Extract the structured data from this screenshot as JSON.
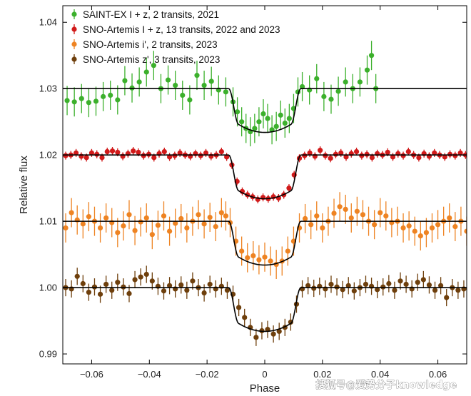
{
  "watermark": "搜狐号@爱势分子knowledge",
  "chart_data": {
    "type": "scatter",
    "xlabel": "Phase",
    "ylabel": "Relative flux",
    "xlim": [
      -0.07,
      0.07
    ],
    "ylim": [
      0.9885,
      1.0425
    ],
    "xticks": [
      -0.06,
      -0.04,
      -0.02,
      0,
      0.02,
      0.04,
      0.06
    ],
    "xtick_labels": [
      "−0.06",
      "−0.04",
      "−0.02",
      "0",
      "0.02",
      "0.04",
      "0.06"
    ],
    "yticks": [
      0.99,
      1.0,
      1.01,
      1.02,
      1.03,
      1.04
    ],
    "ytick_labels": [
      "0.99",
      "1.00",
      "1.01",
      "1.02",
      "1.03",
      "1.04"
    ],
    "grid": false,
    "legend_position": "top-left",
    "transit": {
      "ingress_start": -0.0125,
      "ingress_end": -0.009,
      "egress_start": 0.009,
      "egress_end": 0.0125
    },
    "series": [
      {
        "name": "SAINT-EX I + z, 2 transits, 2021",
        "color": "#3cb02c",
        "baseline": 1.03,
        "depth": 0.0066,
        "xrange": [
          -0.0685,
          0.0385
        ],
        "step": 0.0025,
        "err": 0.0022,
        "points": [
          [
            -0.0685,
            1.0282
          ],
          [
            -0.066,
            1.028
          ],
          [
            -0.0635,
            1.0285
          ],
          [
            -0.061,
            1.0279
          ],
          [
            -0.0585,
            1.0281
          ],
          [
            -0.056,
            1.0288
          ],
          [
            -0.0535,
            1.029
          ],
          [
            -0.051,
            1.0283
          ],
          [
            -0.0485,
            1.0312
          ],
          [
            -0.046,
            1.0301
          ],
          [
            -0.0435,
            1.031
          ],
          [
            -0.041,
            1.0325
          ],
          [
            -0.0385,
            1.0335
          ],
          [
            -0.036,
            1.03
          ],
          [
            -0.0335,
            1.0313
          ],
          [
            -0.031,
            1.0305
          ],
          [
            -0.0285,
            1.029
          ],
          [
            -0.026,
            1.0283
          ],
          [
            -0.0235,
            1.032
          ],
          [
            -0.021,
            1.0305
          ],
          [
            -0.0185,
            1.0311
          ],
          [
            -0.016,
            1.0298
          ],
          [
            -0.0135,
            1.0295
          ],
          [
            -0.011,
            1.028
          ],
          [
            -0.0095,
            1.0265
          ],
          [
            -0.008,
            1.025
          ],
          [
            -0.0065,
            1.024
          ],
          [
            -0.005,
            1.0235
          ],
          [
            -0.0035,
            1.024
          ],
          [
            -0.002,
            1.025
          ],
          [
            -0.0005,
            1.0262
          ],
          [
            0.001,
            1.0255
          ],
          [
            0.0025,
            1.0238
          ],
          [
            0.004,
            1.0243
          ],
          [
            0.0055,
            1.026
          ],
          [
            0.007,
            1.0248
          ],
          [
            0.0085,
            1.0255
          ],
          [
            0.01,
            1.027
          ],
          [
            0.0115,
            1.0295
          ],
          [
            0.013,
            1.0303
          ],
          [
            0.0155,
            1.0298
          ],
          [
            0.018,
            1.0315
          ],
          [
            0.0205,
            1.0288
          ],
          [
            0.023,
            1.0284
          ],
          [
            0.0255,
            1.0296
          ],
          [
            0.028,
            1.031
          ],
          [
            0.0305,
            1.03
          ],
          [
            0.033,
            1.031
          ],
          [
            0.0355,
            1.0328
          ],
          [
            0.037,
            1.035
          ],
          [
            0.0385,
            1.03
          ]
        ]
      },
      {
        "name": "SNO-Artemis I + z, 13 transits, 2022 and 2023",
        "color": "#d11a1a",
        "baseline": 1.02,
        "depth": 0.0066,
        "step": 0.0018,
        "err": 0.0006,
        "points": [
          [
            -0.069,
            1.0199
          ],
          [
            -0.0672,
            1.02
          ],
          [
            -0.0654,
            1.0203
          ],
          [
            -0.0636,
            1.0198
          ],
          [
            -0.0618,
            1.0196
          ],
          [
            -0.06,
            1.0203
          ],
          [
            -0.0582,
            1.0201
          ],
          [
            -0.0564,
            1.0196
          ],
          [
            -0.0546,
            1.0205
          ],
          [
            -0.0528,
            1.0206
          ],
          [
            -0.051,
            1.0204
          ],
          [
            -0.0492,
            1.0198
          ],
          [
            -0.0474,
            1.0202
          ],
          [
            -0.0456,
            1.0206
          ],
          [
            -0.0438,
            1.0204
          ],
          [
            -0.042,
            1.0199
          ],
          [
            -0.0402,
            1.0201
          ],
          [
            -0.0384,
            1.0196
          ],
          [
            -0.0366,
            1.0202
          ],
          [
            -0.0348,
            1.0205
          ],
          [
            -0.033,
            1.0197
          ],
          [
            -0.0312,
            1.0199
          ],
          [
            -0.0294,
            1.0203
          ],
          [
            -0.0276,
            1.02
          ],
          [
            -0.0258,
            1.0198
          ],
          [
            -0.024,
            1.0202
          ],
          [
            -0.0222,
            1.0199
          ],
          [
            -0.0204,
            1.0203
          ],
          [
            -0.0186,
            1.0198
          ],
          [
            -0.0168,
            1.02
          ],
          [
            -0.015,
            1.0205
          ],
          [
            -0.0132,
            1.0197
          ],
          [
            -0.0114,
            1.0185
          ],
          [
            -0.0096,
            1.016
          ],
          [
            -0.0078,
            1.0145
          ],
          [
            -0.006,
            1.014
          ],
          [
            -0.0042,
            1.0137
          ],
          [
            -0.0024,
            1.0133
          ],
          [
            -0.0006,
            1.0136
          ],
          [
            0.0012,
            1.0134
          ],
          [
            0.003,
            1.0137
          ],
          [
            0.0048,
            1.0135
          ],
          [
            0.0066,
            1.014
          ],
          [
            0.0084,
            1.015
          ],
          [
            0.0102,
            1.017
          ],
          [
            0.012,
            1.0195
          ],
          [
            0.0138,
            1.0199
          ],
          [
            0.0156,
            1.0203
          ],
          [
            0.0174,
            1.0198
          ],
          [
            0.0192,
            1.0207
          ],
          [
            0.021,
            1.0199
          ],
          [
            0.0228,
            1.0195
          ],
          [
            0.0246,
            1.0201
          ],
          [
            0.0264,
            1.0203
          ],
          [
            0.0282,
            1.0197
          ],
          [
            0.03,
            1.0202
          ],
          [
            0.0318,
            1.0205
          ],
          [
            0.0336,
            1.0199
          ],
          [
            0.0354,
            1.0201
          ],
          [
            0.0372,
            1.0196
          ],
          [
            0.039,
            1.0202
          ],
          [
            0.0408,
            1.02
          ],
          [
            0.0426,
            1.0204
          ],
          [
            0.0444,
            1.0197
          ],
          [
            0.0462,
            1.0202
          ],
          [
            0.048,
            1.0199
          ],
          [
            0.0498,
            1.0205
          ],
          [
            0.0516,
            1.02
          ],
          [
            0.0534,
            1.0196
          ],
          [
            0.0552,
            1.0202
          ],
          [
            0.057,
            1.0198
          ],
          [
            0.0588,
            1.0203
          ],
          [
            0.0606,
            1.02
          ],
          [
            0.0624,
            1.0197
          ],
          [
            0.0642,
            1.0201
          ],
          [
            0.066,
            1.0199
          ],
          [
            0.0678,
            1.0203
          ],
          [
            0.0696,
            1.02
          ]
        ]
      },
      {
        "name": "SNO-Artemis i', 2 transits, 2023",
        "color": "#ee8322",
        "baseline": 1.01,
        "depth": 0.0066,
        "step": 0.002,
        "err": 0.0022,
        "points": [
          [
            -0.069,
            1.009
          ],
          [
            -0.067,
            1.0113
          ],
          [
            -0.065,
            1.0102
          ],
          [
            -0.063,
            1.0096
          ],
          [
            -0.061,
            1.0107
          ],
          [
            -0.059,
            1.01
          ],
          [
            -0.057,
            1.009
          ],
          [
            -0.055,
            1.0105
          ],
          [
            -0.053,
            1.0098
          ],
          [
            -0.051,
            1.0083
          ],
          [
            -0.049,
            1.0093
          ],
          [
            -0.047,
            1.011
          ],
          [
            -0.045,
            1.0086
          ],
          [
            -0.043,
            1.0099
          ],
          [
            -0.041,
            1.0105
          ],
          [
            -0.039,
            1.008
          ],
          [
            -0.037,
            1.0094
          ],
          [
            -0.035,
            1.0108
          ],
          [
            -0.033,
            1.0085
          ],
          [
            -0.031,
            1.0097
          ],
          [
            -0.029,
            1.0104
          ],
          [
            -0.027,
            1.009
          ],
          [
            -0.025,
            1.01
          ],
          [
            -0.023,
            1.011
          ],
          [
            -0.021,
            1.0096
          ],
          [
            -0.019,
            1.0106
          ],
          [
            -0.017,
            1.0092
          ],
          [
            -0.015,
            1.0113
          ],
          [
            -0.0135,
            1.0108
          ],
          [
            -0.012,
            1.0098
          ],
          [
            -0.01,
            1.007
          ],
          [
            -0.008,
            1.0055
          ],
          [
            -0.006,
            1.0045
          ],
          [
            -0.004,
            1.0048
          ],
          [
            -0.002,
            1.0042
          ],
          [
            0.0,
            1.0046
          ],
          [
            0.002,
            1.004
          ],
          [
            0.004,
            1.0035
          ],
          [
            0.006,
            1.004
          ],
          [
            0.008,
            1.0055
          ],
          [
            0.01,
            1.007
          ],
          [
            0.012,
            1.009
          ],
          [
            0.014,
            1.0104
          ],
          [
            0.016,
            1.0095
          ],
          [
            0.018,
            1.0108
          ],
          [
            0.02,
            1.009
          ],
          [
            0.022,
            1.01
          ],
          [
            0.024,
            1.0112
          ],
          [
            0.026,
            1.0122
          ],
          [
            0.028,
            1.0118
          ],
          [
            0.03,
            1.0105
          ],
          [
            0.032,
            1.0115
          ],
          [
            0.034,
            1.011
          ],
          [
            0.036,
            1.01
          ],
          [
            0.038,
            1.0095
          ],
          [
            0.04,
            1.0113
          ],
          [
            0.042,
            1.0108
          ],
          [
            0.044,
            1.0098
          ],
          [
            0.046,
            1.01
          ],
          [
            0.048,
            1.009
          ],
          [
            0.05,
            1.0093
          ],
          [
            0.052,
            1.0085
          ],
          [
            0.054,
            1.0078
          ],
          [
            0.056,
            1.0083
          ],
          [
            0.058,
            1.009
          ],
          [
            0.06,
            1.0095
          ],
          [
            0.062,
            1.01
          ],
          [
            0.064,
            1.0105
          ],
          [
            0.066,
            1.0092
          ],
          [
            0.068,
            1.01
          ],
          [
            0.07,
            1.0085
          ]
        ]
      },
      {
        "name": "SNO-Artemis z', 3 transits, 2023",
        "color": "#6e3f0c",
        "baseline": 1.0,
        "depth": 0.0066,
        "step": 0.002,
        "err": 0.0013,
        "points": [
          [
            -0.069,
            1.0
          ],
          [
            -0.067,
            0.9998
          ],
          [
            -0.065,
            1.0017
          ],
          [
            -0.063,
            1.0006
          ],
          [
            -0.061,
            0.9993
          ],
          [
            -0.059,
            1.0001
          ],
          [
            -0.057,
            0.999
          ],
          [
            -0.055,
            1.0005
          ],
          [
            -0.053,
            0.9996
          ],
          [
            -0.051,
            1.0008
          ],
          [
            -0.049,
            1.0001
          ],
          [
            -0.047,
            0.9991
          ],
          [
            -0.045,
            1.0012
          ],
          [
            -0.043,
            1.0016
          ],
          [
            -0.041,
            1.002
          ],
          [
            -0.039,
            1.001
          ],
          [
            -0.037,
            1.0002
          ],
          [
            -0.035,
            0.9995
          ],
          [
            -0.033,
            1.0003
          ],
          [
            -0.031,
            0.9998
          ],
          [
            -0.029,
            1.0004
          ],
          [
            -0.027,
            0.9996
          ],
          [
            -0.025,
            1.001
          ],
          [
            -0.023,
            1.0
          ],
          [
            -0.021,
            0.9992
          ],
          [
            -0.019,
            1.0005
          ],
          [
            -0.017,
            0.9998
          ],
          [
            -0.015,
            1.0002
          ],
          [
            -0.013,
            0.9996
          ],
          [
            -0.011,
            0.999
          ],
          [
            -0.009,
            0.997
          ],
          [
            -0.007,
            0.9955
          ],
          [
            -0.005,
            0.994
          ],
          [
            -0.003,
            0.9925
          ],
          [
            -0.001,
            0.9935
          ],
          [
            0.001,
            0.9937
          ],
          [
            0.003,
            0.993
          ],
          [
            0.005,
            0.9934
          ],
          [
            0.007,
            0.994
          ],
          [
            0.009,
            0.9948
          ],
          [
            0.011,
            0.9975
          ],
          [
            0.013,
            0.9998
          ],
          [
            0.015,
            1.0003
          ],
          [
            0.017,
            0.9999
          ],
          [
            0.019,
            1.0002
          ],
          [
            0.021,
            0.9998
          ],
          [
            0.023,
            1.0005
          ],
          [
            0.025,
            1.0001
          ],
          [
            0.027,
            0.9997
          ],
          [
            0.029,
            1.0003
          ],
          [
            0.031,
            0.9995
          ],
          [
            0.033,
            1.0
          ],
          [
            0.035,
            1.0005
          ],
          [
            0.037,
            1.0002
          ],
          [
            0.039,
            0.9997
          ],
          [
            0.041,
            1.0001
          ],
          [
            0.043,
            1.0006
          ],
          [
            0.045,
            0.9996
          ],
          [
            0.047,
            1.001
          ],
          [
            0.049,
            1.0005
          ],
          [
            0.051,
            0.9998
          ],
          [
            0.053,
            1.0008
          ],
          [
            0.055,
            1.0012
          ],
          [
            0.057,
            1.0004
          ],
          [
            0.059,
            0.9996
          ],
          [
            0.061,
            1.0003
          ],
          [
            0.063,
            0.9985
          ],
          [
            0.065,
            1.0
          ],
          [
            0.067,
            0.9996
          ],
          [
            0.069,
            0.9998
          ]
        ]
      }
    ]
  }
}
